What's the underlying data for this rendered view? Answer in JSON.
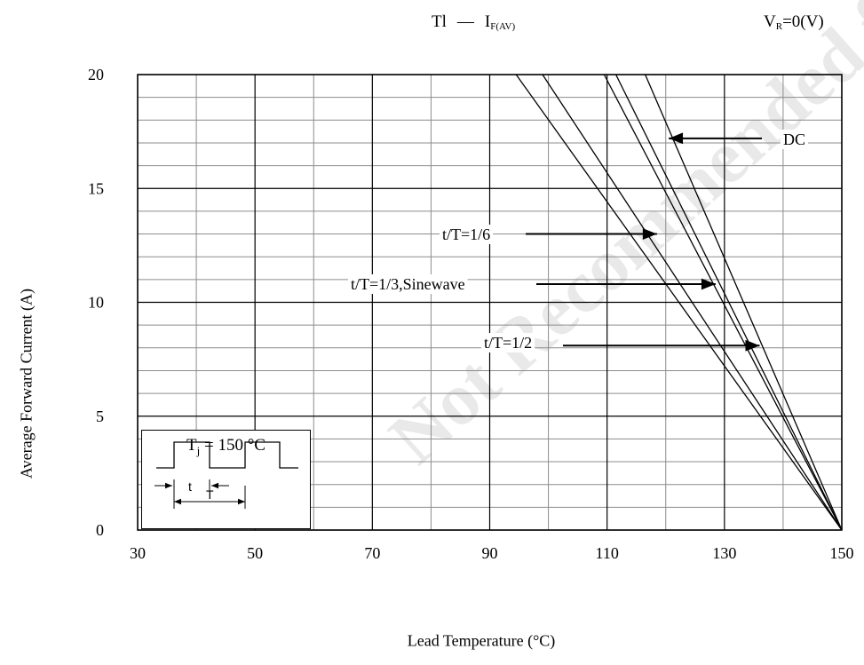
{
  "title": {
    "prefix": "Tl",
    "dash": "—",
    "main": "I",
    "main_sub": "F(AV)",
    "cond_prefix": "V",
    "cond_sub": "R",
    "cond_suffix": "=0(V)"
  },
  "inset": {
    "label_prefix": "T",
    "label_sub": "j",
    "label_suffix": " = 150 °C",
    "t_label": "t",
    "T_label": "T"
  },
  "watermark": "Not Recommended for New Design",
  "chart_data": {
    "type": "line",
    "title": "",
    "xlabel": "Lead Temperature (°C)",
    "ylabel": "Average Forward Current (A)",
    "xlim": [
      30,
      150
    ],
    "ylim": [
      0,
      20
    ],
    "x_ticks": [
      "30",
      "50",
      "70",
      "90",
      "110",
      "130",
      "150"
    ],
    "y_ticks": [
      "0",
      "5",
      "10",
      "15",
      "20"
    ],
    "grid": true,
    "series": [
      {
        "name": "DC",
        "x": [
          116.5,
          150
        ],
        "y": [
          20,
          0
        ]
      },
      {
        "name": "t/T=1/2",
        "x": [
          111.5,
          150
        ],
        "y": [
          20,
          0
        ]
      },
      {
        "name": "t/T=1/3,Sinewave",
        "x": [
          109.5,
          150
        ],
        "y": [
          20,
          0
        ]
      },
      {
        "name": "t/T=1/6",
        "x": [
          99,
          150
        ],
        "y": [
          20,
          0
        ]
      },
      {
        "name": "",
        "x": [
          94.5,
          150
        ],
        "y": [
          20,
          0
        ]
      }
    ],
    "annotations": [
      {
        "text": "DC",
        "arrow_to": [
          120.5,
          17.2
        ]
      },
      {
        "text": "t/T=1/6",
        "arrow_to": [
          118.5,
          13.0
        ]
      },
      {
        "text": "t/T=1/3,Sinewave",
        "arrow_to": [
          128.5,
          10.8
        ]
      },
      {
        "text": "t/T=1/2",
        "arrow_to": [
          136.0,
          8.1
        ]
      }
    ]
  },
  "colors": {
    "line": "#000000",
    "grid_major": "#000000",
    "grid_minor": "#8c8c8c",
    "watermark": "#e9e9e9"
  }
}
